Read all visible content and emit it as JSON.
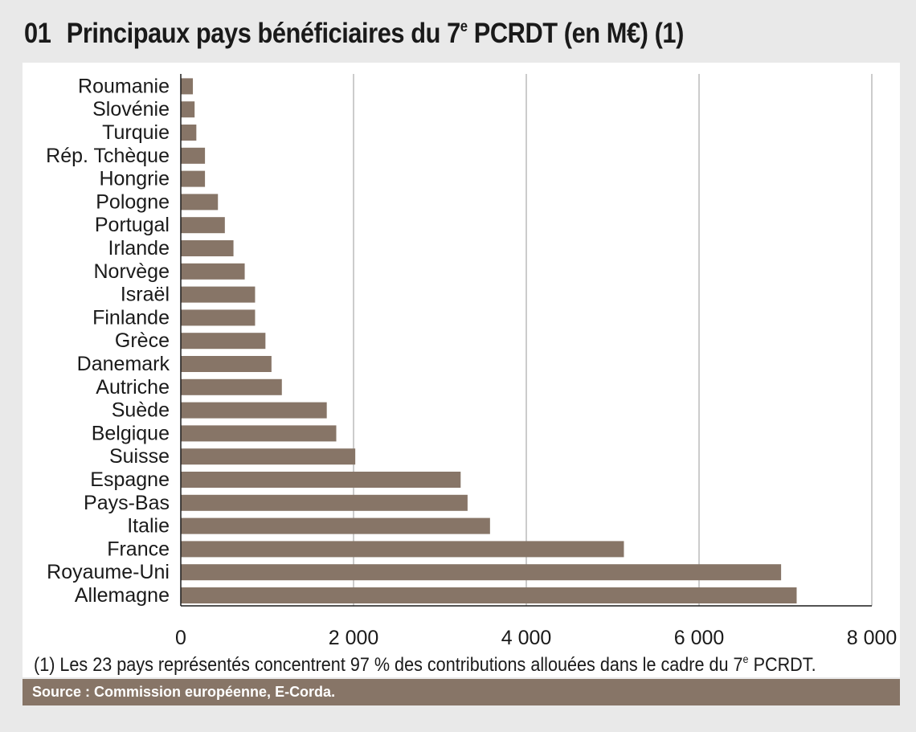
{
  "header": {
    "number": "01",
    "title_main": "Principaux pays bénéficiaires du 7",
    "title_sup": "e",
    "title_end": " PCRDT (en M€) (1)"
  },
  "footnote": {
    "main": "(1) Les 23 pays représentés concentrent 97 % des contributions allouées dans le cadre du 7",
    "sup": "e",
    "end": " PCRDT."
  },
  "source": "Source : Commission européenne, E-Corda.",
  "colors": {
    "bar": "#877567",
    "grid": "#9a9a9a",
    "axis": "#1a1a1a",
    "background": "#e9e9e9"
  },
  "chart_data": {
    "type": "bar",
    "orientation": "horizontal",
    "categories": [
      "Roumanie",
      "Slovénie",
      "Turquie",
      "Rép. Tchèque",
      "Hongrie",
      "Pologne",
      "Portugal",
      "Irlande",
      "Norvège",
      "Israël",
      "Finlande",
      "Grèce",
      "Danemark",
      "Autriche",
      "Suède",
      "Belgique",
      "Suisse",
      "Espagne",
      "Pays-Bas",
      "Italie",
      "France",
      "Royaume-Uni",
      "Allemagne"
    ],
    "values": [
      140,
      160,
      180,
      280,
      280,
      430,
      510,
      610,
      740,
      860,
      860,
      980,
      1050,
      1170,
      1690,
      1800,
      2020,
      3240,
      3320,
      3580,
      5130,
      6950,
      7130
    ],
    "xlim": [
      0,
      8000
    ],
    "xticks": [
      0,
      2000,
      4000,
      6000,
      8000
    ],
    "xtick_labels": [
      "0",
      "2 000",
      "4 000",
      "6 000",
      "8 000"
    ],
    "grid": true
  }
}
